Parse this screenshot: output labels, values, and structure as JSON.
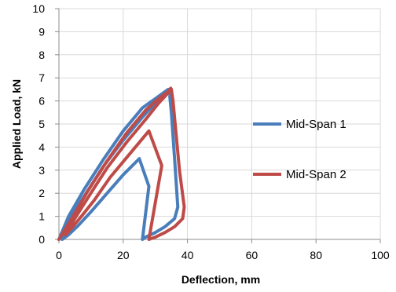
{
  "chart_data": {
    "type": "line",
    "xlabel": "Deflection, mm",
    "ylabel": "Applied Load, kN",
    "xlim": [
      0,
      100
    ],
    "ylim": [
      0,
      10
    ],
    "xticks": [
      "0",
      "20",
      "40",
      "60",
      "80",
      "100"
    ],
    "yticks": [
      "0",
      "1",
      "2",
      "3",
      "4",
      "5",
      "6",
      "7",
      "8",
      "9",
      "10"
    ],
    "grid": true,
    "legend": "right",
    "series": [
      {
        "name": "Mid-Span 1",
        "color": "#4a7ebb",
        "x": [
          0,
          3,
          8,
          14,
          20,
          26,
          30,
          33,
          34,
          35,
          34.5,
          35,
          36,
          37,
          36,
          33,
          30,
          27,
          26,
          28,
          25,
          20,
          15,
          10,
          6,
          3,
          1,
          3,
          8,
          14,
          20,
          26,
          30,
          33
        ],
        "y": [
          0,
          1,
          2.2,
          3.5,
          4.7,
          5.7,
          6.1,
          6.4,
          6.5,
          6.5,
          6.2,
          5.5,
          3.5,
          1.4,
          0.9,
          0.55,
          0.3,
          0.1,
          0,
          2.3,
          3.5,
          2.8,
          2.0,
          1.2,
          0.6,
          0.2,
          0,
          0.8,
          1.9,
          3.2,
          4.3,
          5.3,
          5.9,
          6.4
        ]
      },
      {
        "name": "Mid-Span 2",
        "color": "#be4b48",
        "x": [
          0,
          4,
          9,
          15,
          21,
          27,
          31,
          34,
          34.8,
          35,
          35.5,
          36.5,
          37.5,
          39,
          38.5,
          36,
          33,
          30,
          28,
          32,
          28,
          22,
          16,
          11,
          7,
          4,
          2,
          4,
          9,
          15,
          21,
          27,
          31,
          34
        ],
        "y": [
          0,
          0.9,
          2.1,
          3.4,
          4.6,
          5.6,
          6.1,
          6.4,
          6.55,
          6.5,
          6.0,
          4.5,
          3.0,
          1.4,
          0.9,
          0.55,
          0.3,
          0.1,
          0,
          3.2,
          4.7,
          3.7,
          2.7,
          1.7,
          1.0,
          0.5,
          0.2,
          0.7,
          1.8,
          3.1,
          4.2,
          5.2,
          5.9,
          6.35
        ]
      }
    ]
  }
}
